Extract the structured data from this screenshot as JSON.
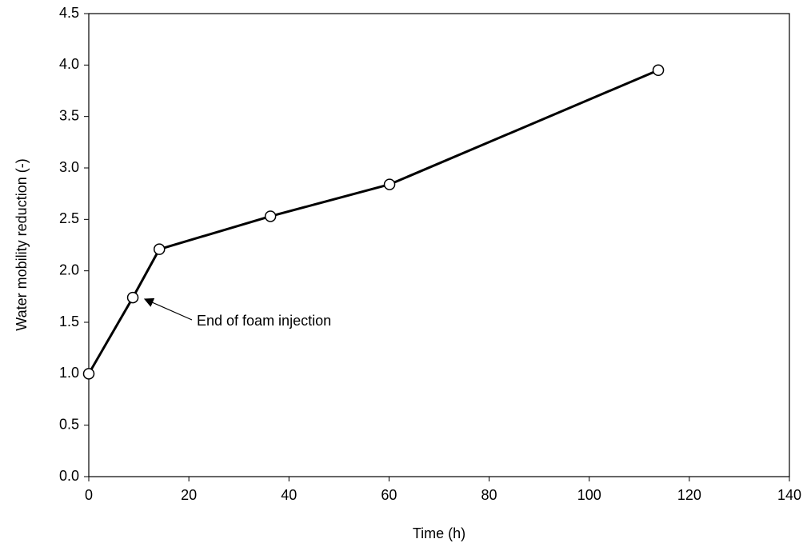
{
  "chart_data": {
    "type": "line",
    "x_label": "Time (h)",
    "y_label": "Water mobility reduction (-)",
    "annotation": "End of foam injection",
    "x": [
      0,
      8.8,
      14.1,
      36.3,
      60.1,
      113.8
    ],
    "series": [
      {
        "color": "#000000",
        "values": [
          1.0,
          1.74,
          2.21,
          2.53,
          2.84,
          3.95
        ]
      }
    ],
    "xlim": [
      0,
      140
    ],
    "xticks": [
      0,
      20,
      40,
      60,
      80,
      100,
      120,
      140
    ],
    "ylim": [
      0,
      4.5
    ],
    "yticks": [
      {
        "value": 0,
        "label": "0.0"
      },
      {
        "value": 0.5,
        "label": "0.5"
      },
      {
        "value": 1,
        "label": "1.0"
      },
      {
        "value": 1.5,
        "label": "1.5"
      },
      {
        "value": 2,
        "label": "2.0"
      },
      {
        "value": 2.5,
        "label": "2.5"
      },
      {
        "value": 3,
        "label": "3.0"
      },
      {
        "value": 3.5,
        "label": "3.5"
      },
      {
        "value": 4,
        "label": "4.0"
      },
      {
        "value": 4.5,
        "label": "4.5"
      }
    ],
    "grid": false
  }
}
